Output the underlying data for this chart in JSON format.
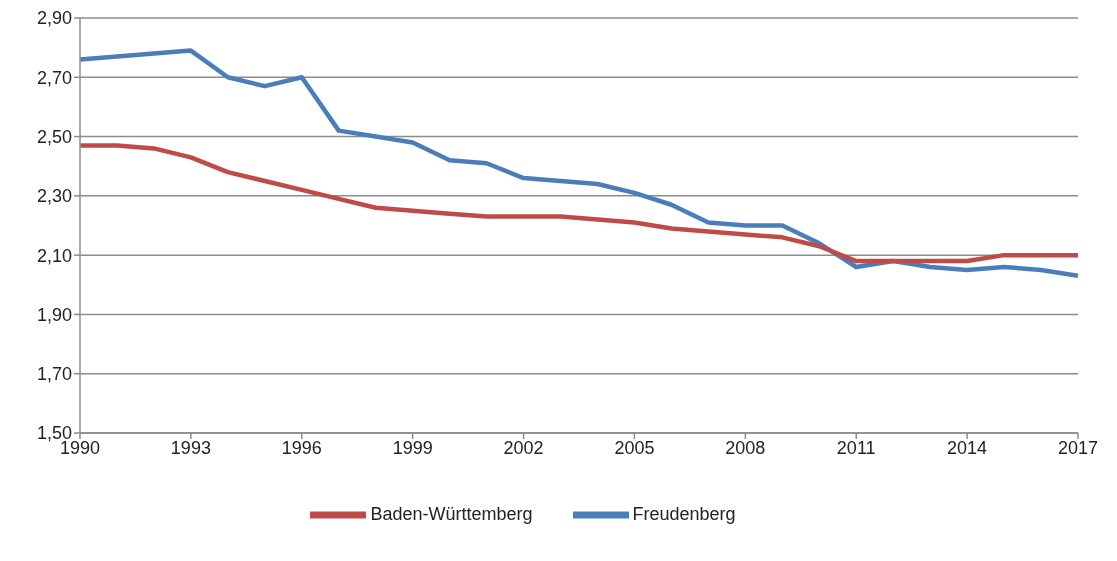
{
  "chart_data": {
    "type": "line",
    "x": [
      1990,
      1991,
      1992,
      1993,
      1994,
      1995,
      1996,
      1997,
      1998,
      1999,
      2000,
      2001,
      2002,
      2003,
      2004,
      2005,
      2006,
      2007,
      2008,
      2009,
      2010,
      2011,
      2012,
      2013,
      2014,
      2015,
      2016,
      2017
    ],
    "series": [
      {
        "name": "Freudenberg",
        "color": "#4a7ebb",
        "values": [
          2.76,
          2.77,
          2.78,
          2.79,
          2.7,
          2.67,
          2.7,
          2.52,
          2.5,
          2.48,
          2.42,
          2.41,
          2.36,
          2.35,
          2.34,
          2.31,
          2.27,
          2.21,
          2.2,
          2.2,
          2.14,
          2.06,
          2.08,
          2.06,
          2.05,
          2.06,
          2.05,
          2.03
        ]
      },
      {
        "name": "Baden-Württemberg",
        "color": "#be4b48",
        "values": [
          2.47,
          2.47,
          2.46,
          2.43,
          2.38,
          2.35,
          2.32,
          2.29,
          2.26,
          2.25,
          2.24,
          2.23,
          2.23,
          2.23,
          2.22,
          2.21,
          2.19,
          2.18,
          2.17,
          2.16,
          2.13,
          2.08,
          2.08,
          2.08,
          2.08,
          2.1,
          2.1,
          2.1
        ]
      }
    ],
    "xlim": [
      1990,
      2017
    ],
    "xticks": [
      1990,
      1993,
      1996,
      1999,
      2002,
      2005,
      2008,
      2011,
      2014,
      2017
    ],
    "ylim": [
      1.5,
      2.9
    ],
    "yticks": [
      {
        "value": 1.5,
        "label": "1,50"
      },
      {
        "value": 1.7,
        "label": "1,70"
      },
      {
        "value": 1.9,
        "label": "1,90"
      },
      {
        "value": 2.1,
        "label": "2,10"
      },
      {
        "value": 2.3,
        "label": "2,30"
      },
      {
        "value": 2.5,
        "label": "2,50"
      },
      {
        "value": 2.7,
        "label": "2,70"
      },
      {
        "value": 2.9,
        "label": "2,90"
      }
    ],
    "grid": "y",
    "legend": "bottom",
    "marker": "none",
    "line_style": "solid"
  }
}
